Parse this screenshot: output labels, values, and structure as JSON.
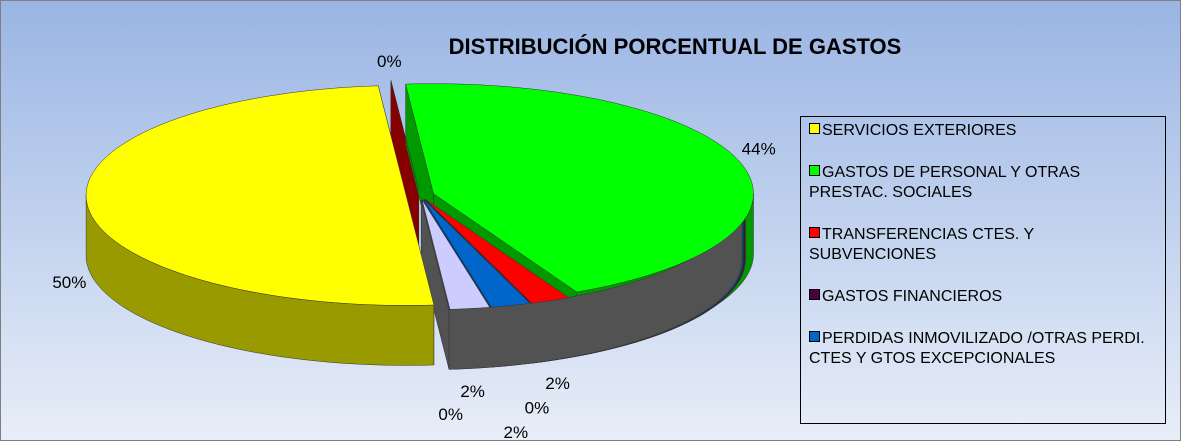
{
  "chart_data": {
    "type": "pie3d",
    "title": "DISTRIBUCIÓN PORCENTUAL DE GASTOS",
    "categories": [
      "SERVICIOS EXTERIORES",
      null,
      "GASTOS DE PERSONAL Y OTRAS PRESTAC. SOCIALES",
      "TRANSFERENCIAS CTES. Y SUBVENCIONES",
      "GASTOS FINANCIEROS",
      "PERDIDAS INMOVILIZADO /OTRAS PERDI. CTES Y GTOS EXCEPCIONALES",
      null,
      null
    ],
    "values": [
      50,
      0,
      44,
      2,
      0,
      2,
      2,
      0
    ],
    "value_labels": [
      "50%",
      "0%",
      "44%",
      "2%",
      "0%",
      "2%",
      "2%",
      "0%"
    ],
    "colors": [
      "#ffff00",
      "#e00000",
      "#00ff00",
      "#ff0000",
      "#4b0040",
      "#0066cc",
      "#ccccff",
      "#888888"
    ],
    "legend": "right"
  }
}
